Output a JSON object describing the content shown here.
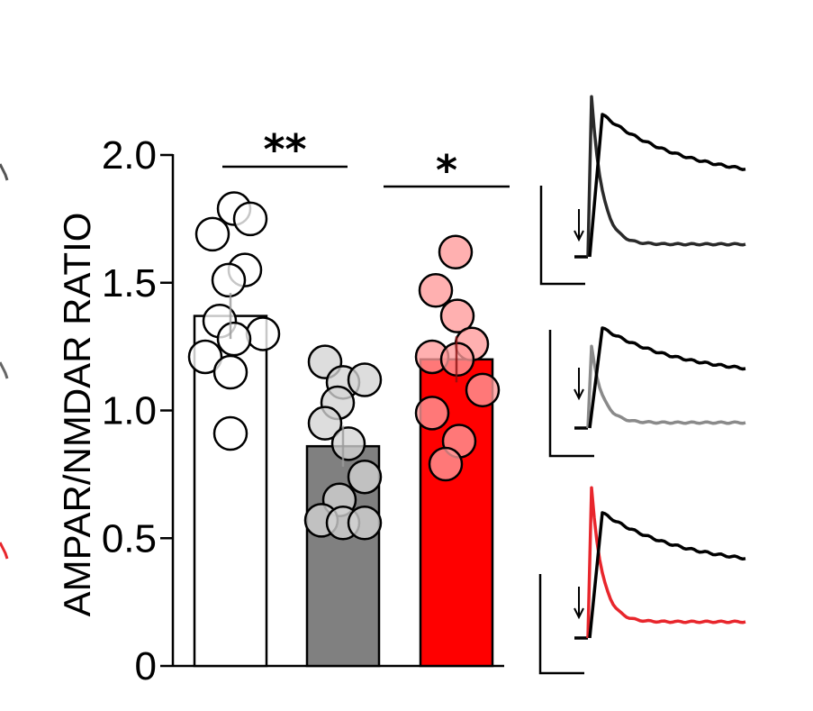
{
  "chart_data": {
    "type": "bar",
    "ylabel": "AMPAR/NMDAR RATIO",
    "ylim": [
      0,
      2.0
    ],
    "yticks": [
      0,
      0.5,
      1.0,
      1.5,
      2.0
    ],
    "ytick_labels": [
      "0",
      "0.5",
      "1.0",
      "1.5",
      "2.0"
    ],
    "categories": [
      "",
      "",
      ""
    ],
    "values": [
      1.37,
      0.86,
      1.2
    ],
    "errors": [
      0.09,
      0.08,
      0.09
    ],
    "colors": [
      "#ffffff",
      "#808080",
      "#ff0000"
    ],
    "point_colors": [
      "#ffffff",
      "#d3d3d3",
      "#ff9a9a"
    ],
    "points": [
      [
        1.79,
        1.69,
        1.75,
        1.55,
        1.51,
        1.35,
        1.3,
        1.28,
        1.21,
        1.15,
        0.91
      ],
      [
        1.19,
        1.11,
        1.12,
        1.03,
        0.95,
        0.87,
        0.74,
        0.65,
        0.57,
        0.56,
        0.56
      ],
      [
        1.62,
        1.47,
        1.37,
        1.26,
        1.21,
        1.2,
        1.08,
        0.99,
        0.88,
        0.79
      ]
    ],
    "significance": [
      {
        "from": 0,
        "to": 1,
        "label": "**"
      },
      {
        "from": 1,
        "to": 2,
        "label": "*"
      }
    ],
    "grid": false
  },
  "traces": [
    {
      "control_color": "#000000",
      "compare_color": "#2a2a2a"
    },
    {
      "control_color": "#000000",
      "compare_color": "#8a8a8a"
    },
    {
      "control_color": "#000000",
      "compare_color": "#e8262c"
    }
  ]
}
